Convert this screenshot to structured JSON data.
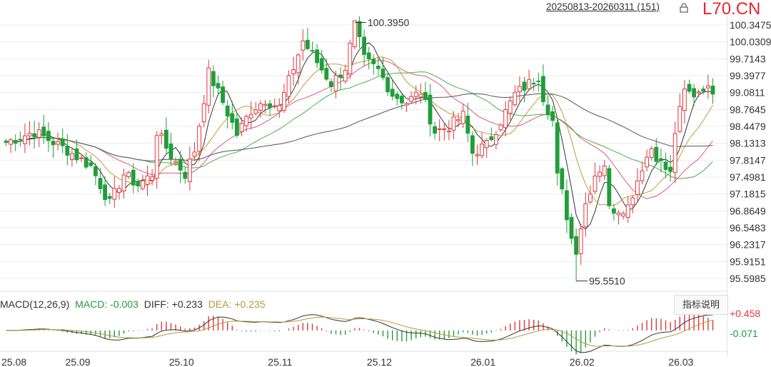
{
  "header": {
    "range_label": "20250813-20260311 (151)",
    "brand": "L70.CN"
  },
  "macd_legend": {
    "title": "MACD(12,26,9)",
    "macd_label": "MACD:",
    "macd_value": "-0.003",
    "diff_label": "DIFF:",
    "diff_value": "+0.233",
    "dea_label": "DEA:",
    "dea_value": "+0.235",
    "help_button": "指标说明"
  },
  "colors": {
    "up": "#e0383e",
    "down": "#1f9e3a",
    "ma5": "#333333",
    "ma10": "#b8a03a",
    "ma20": "#e0597f",
    "ma30": "#4cae4c",
    "ma60": "#555555",
    "dea": "#b39a3a",
    "brand": "#e8262d"
  },
  "chart_data": {
    "type": "candlestick",
    "price_axis_labels": [
      "100.3475",
      "100.0309",
      "99.7143",
      "99.3977",
      "99.0811",
      "98.7645",
      "98.4479",
      "98.1313",
      "97.8147",
      "97.4981",
      "97.1815",
      "96.8649",
      "96.5483",
      "96.2317",
      "95.9151",
      "95.5985"
    ],
    "price_range": [
      95.5985,
      100.3475
    ],
    "x_tick_labels": [
      "25.08",
      "25.09",
      "25.10",
      "25.11",
      "25.12",
      "26.01",
      "26.02",
      "26.03"
    ],
    "annotations": {
      "high": "100.3950",
      "low": "95.5510"
    },
    "macd_axis_labels": [
      "+0.458",
      "-0.071"
    ],
    "macd_range": [
      -0.071,
      0.458
    ],
    "waypoints_close": [
      [
        0,
        98.15
      ],
      [
        6,
        98.35
      ],
      [
        13,
        98.0
      ],
      [
        18,
        97.7
      ],
      [
        22,
        97.0
      ],
      [
        25,
        97.55
      ],
      [
        28,
        97.35
      ],
      [
        31,
        97.55
      ],
      [
        32,
        98.35
      ],
      [
        35,
        97.9
      ],
      [
        38,
        97.55
      ],
      [
        40,
        98.0
      ],
      [
        43,
        99.45
      ],
      [
        46,
        98.9
      ],
      [
        49,
        98.3
      ],
      [
        52,
        98.75
      ],
      [
        55,
        98.95
      ],
      [
        58,
        98.8
      ],
      [
        61,
        99.55
      ],
      [
        63,
        100.05
      ],
      [
        66,
        99.65
      ],
      [
        69,
        99.25
      ],
      [
        72,
        99.55
      ],
      [
        74,
        100.35
      ],
      [
        76,
        99.7
      ],
      [
        79,
        99.5
      ],
      [
        82,
        99.05
      ],
      [
        85,
        98.9
      ],
      [
        88,
        99.1
      ],
      [
        91,
        98.35
      ],
      [
        94,
        98.45
      ],
      [
        97,
        98.65
      ],
      [
        99,
        97.95
      ],
      [
        102,
        98.1
      ],
      [
        105,
        98.55
      ],
      [
        108,
        99.05
      ],
      [
        111,
        99.25
      ],
      [
        113,
        99.4
      ],
      [
        114,
        99.0
      ],
      [
        116,
        98.55
      ],
      [
        117,
        97.5
      ],
      [
        118,
        97.2
      ],
      [
        120,
        96.35
      ],
      [
        121,
        96.15
      ],
      [
        123,
        97.0
      ],
      [
        125,
        97.55
      ],
      [
        127,
        97.75
      ],
      [
        128,
        96.9
      ],
      [
        130,
        96.9
      ],
      [
        132,
        96.95
      ],
      [
        133,
        97.2
      ],
      [
        135,
        97.7
      ],
      [
        137,
        98.05
      ],
      [
        139,
        97.75
      ],
      [
        141,
        97.55
      ],
      [
        142,
        98.35
      ],
      [
        144,
        99.1
      ],
      [
        146,
        99.05
      ],
      [
        148,
        99.2
      ],
      [
        150,
        99.05
      ]
    ],
    "ma_series": [
      "MA5",
      "MA10",
      "MA20",
      "MA30",
      "MA60"
    ],
    "macd_series": [
      "DIFF",
      "DEA",
      "MACD"
    ]
  }
}
